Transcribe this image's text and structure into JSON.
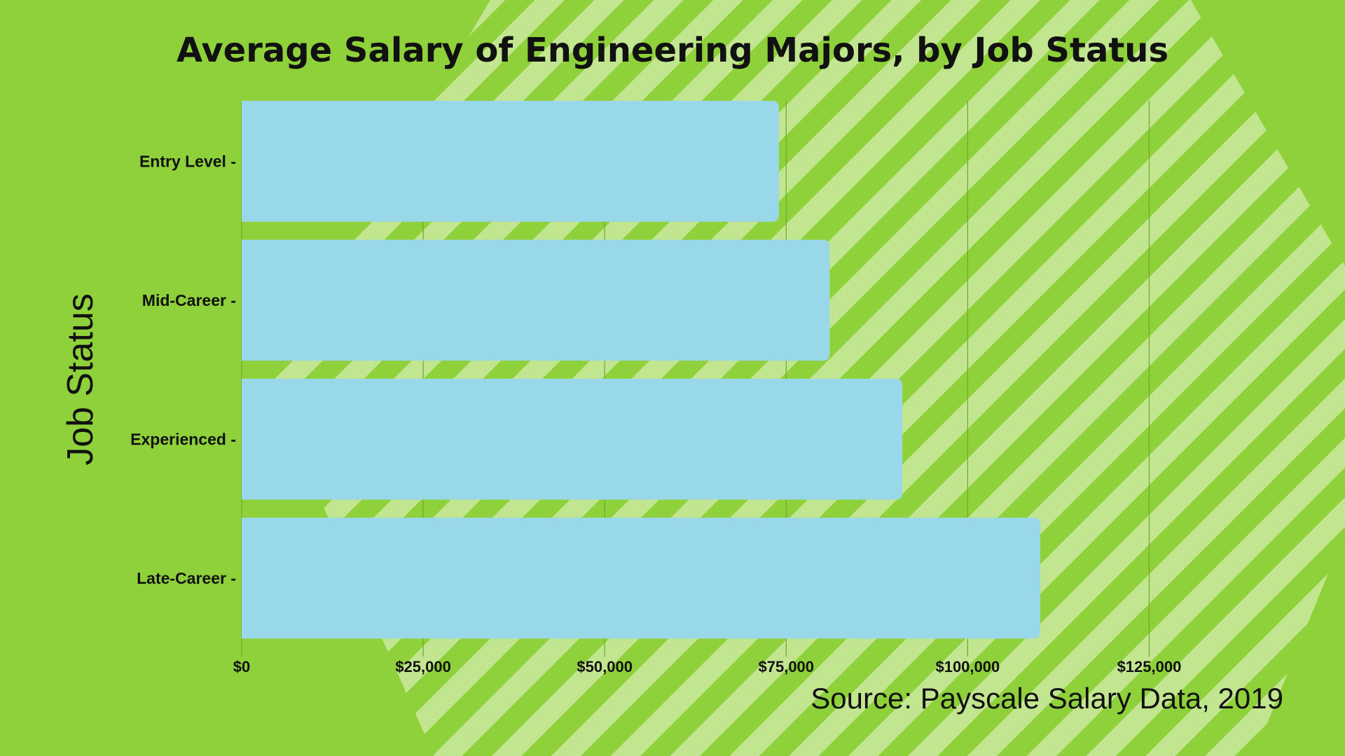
{
  "chart_data": {
    "type": "bar",
    "orientation": "horizontal",
    "title": "Average Salary of Engineering  Majors, by Job Status",
    "ylabel": "Job Status",
    "xlabel": "",
    "source": "Source: Payscale Salary Data, 2019",
    "categories": [
      "Entry Level",
      "Mid-Career",
      "Experienced",
      "Late-Career"
    ],
    "category_labels": [
      "Entry Level -",
      "Mid-Career -",
      "Experienced -",
      "Late-Career -"
    ],
    "values": [
      74000,
      81000,
      91000,
      110000
    ],
    "xlim": [
      0,
      137500
    ],
    "ticks": [
      0,
      25000,
      50000,
      75000,
      100000,
      125000
    ],
    "tick_labels": [
      "$0",
      "$25,000",
      "$50,000",
      "$75,000",
      "$100,000",
      "$125,000"
    ],
    "grid": "vertical",
    "legend": "none"
  },
  "colors": {
    "background": "#8fd13a",
    "stripes": "#c2e58f",
    "bar": "#98d8e8",
    "grid": "#6fa82c",
    "text": "#111111"
  }
}
